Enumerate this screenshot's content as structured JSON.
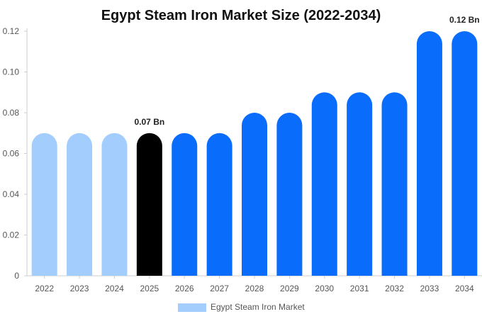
{
  "chart_data": {
    "type": "bar",
    "title": "Egypt Steam Iron Market Size (2022-2034)",
    "xlabel": "",
    "ylabel": "",
    "categories": [
      "2022",
      "2023",
      "2024",
      "2025",
      "2026",
      "2027",
      "2028",
      "2029",
      "2030",
      "2031",
      "2032",
      "2033",
      "2034"
    ],
    "series": [
      {
        "name": "Egypt Steam Iron Market",
        "values": [
          0.07,
          0.07,
          0.07,
          0.07,
          0.07,
          0.07,
          0.08,
          0.08,
          0.09,
          0.09,
          0.09,
          0.12,
          0.12
        ]
      }
    ],
    "ylim": [
      0,
      0.12
    ],
    "yticks": [
      "0",
      "0.02",
      "0.04",
      "0.06",
      "0.08",
      "0.10",
      "0.12"
    ],
    "data_labels": [
      {
        "category": "2025",
        "text": "0.07 Bn"
      },
      {
        "category": "2034",
        "text": "0.12 Bn"
      }
    ],
    "grid": false,
    "legend": "bottom-center",
    "colors": {
      "historical": "#a3cdfd",
      "base_year": "#000000",
      "forecast": "#0a6cfa",
      "legend_swatch": "#a3cdfd",
      "axis": "#cccccc"
    },
    "bar_color_groups": [
      "historical",
      "historical",
      "historical",
      "base_year",
      "forecast",
      "forecast",
      "forecast",
      "forecast",
      "forecast",
      "forecast",
      "forecast",
      "forecast",
      "forecast"
    ]
  }
}
